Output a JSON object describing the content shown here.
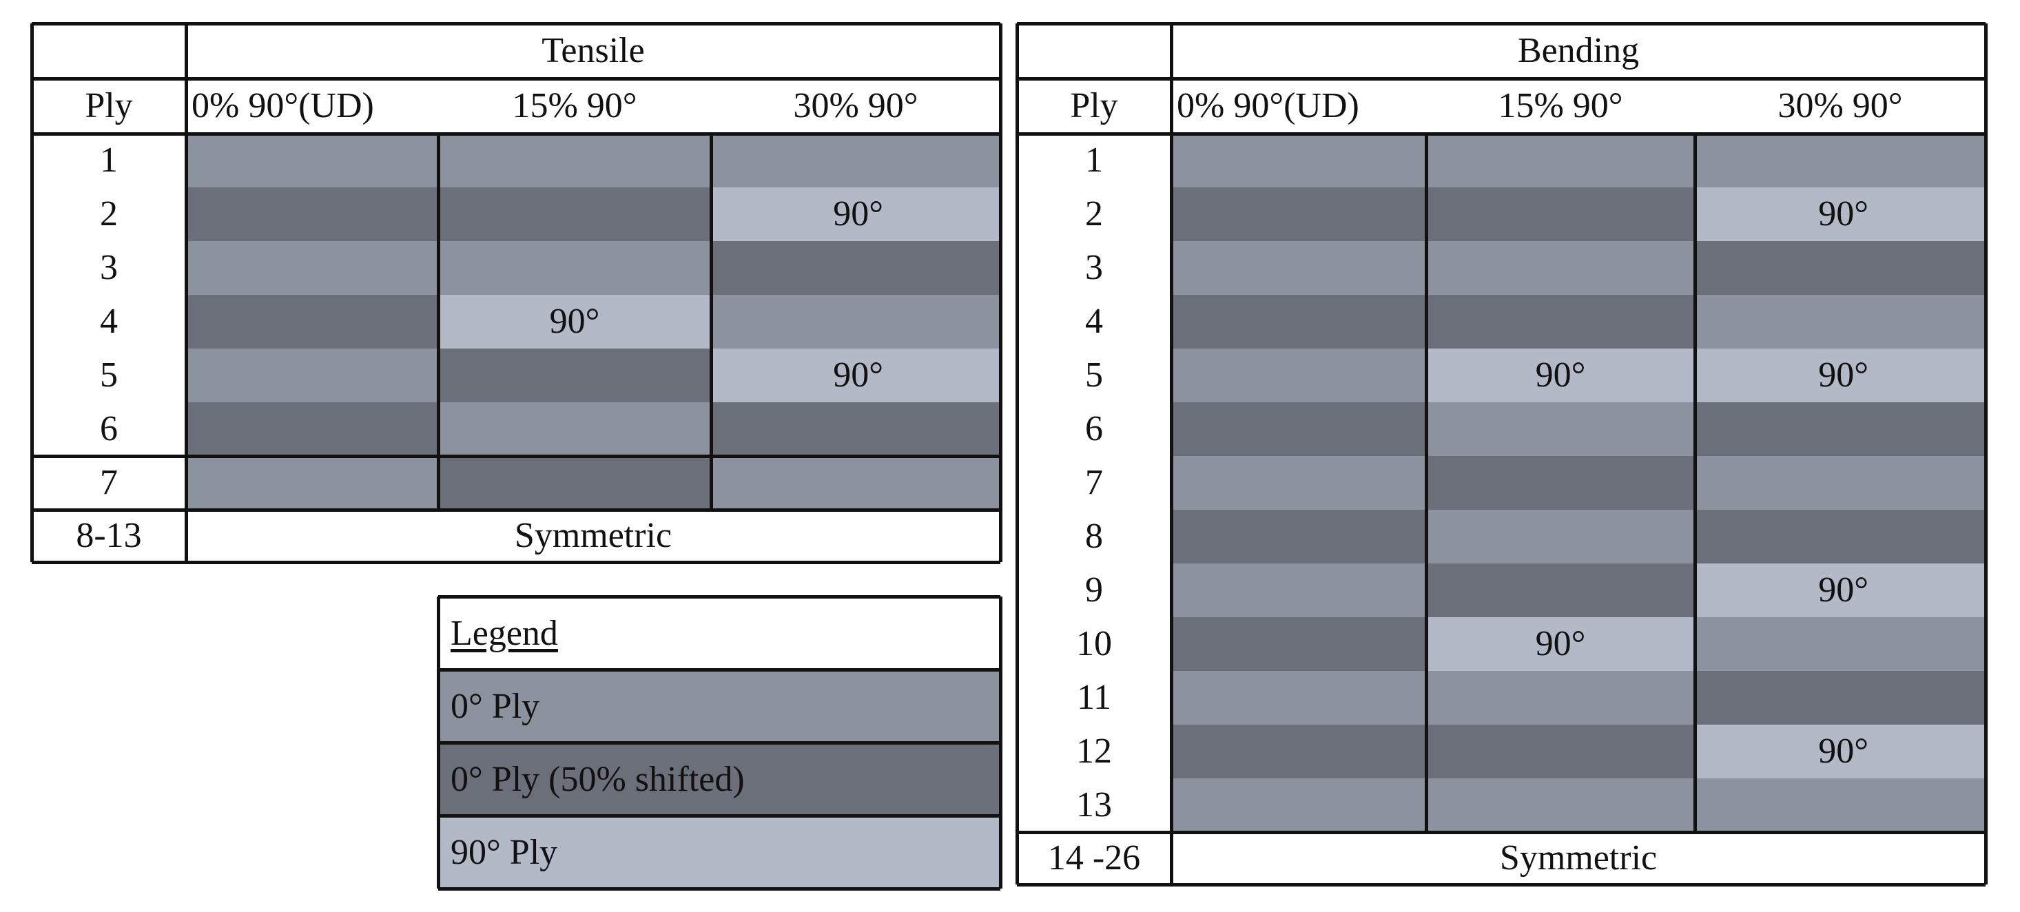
{
  "colors": {
    "ply_0": "#8c929e",
    "ply_0_shifted": "#6b6f79",
    "ply_90": "#b4b9c8",
    "border": "#111111",
    "background": "#ffffff"
  },
  "tensile": {
    "title": "Tensile",
    "ply_header": "Ply",
    "columns": [
      "0% 90°(UD)",
      "15% 90°",
      "30% 90°"
    ],
    "ply_numbers": [
      "1",
      "2",
      "3",
      "4",
      "5",
      "6",
      "7"
    ],
    "rows": [
      [
        "0",
        "0",
        "0"
      ],
      [
        "s",
        "s",
        "90"
      ],
      [
        "0",
        "0",
        "s"
      ],
      [
        "s",
        "90",
        "0"
      ],
      [
        "0",
        "s",
        "90"
      ],
      [
        "s",
        "0",
        "s"
      ],
      [
        "0",
        "s",
        "0"
      ]
    ],
    "symmetric_range": "8-13",
    "symmetric_label": "Symmetric"
  },
  "bending": {
    "title": "Bending",
    "ply_header": "Ply",
    "columns": [
      "0% 90°(UD)",
      "15% 90°",
      "30% 90°"
    ],
    "ply_numbers": [
      "1",
      "2",
      "3",
      "4",
      "5",
      "6",
      "7",
      "8",
      "9",
      "10",
      "11",
      "12",
      "13"
    ],
    "rows": [
      [
        "0",
        "0",
        "0"
      ],
      [
        "s",
        "s",
        "90"
      ],
      [
        "0",
        "0",
        "s"
      ],
      [
        "s",
        "s",
        "0"
      ],
      [
        "0",
        "90",
        "90"
      ],
      [
        "s",
        "0",
        "s"
      ],
      [
        "0",
        "s",
        "0"
      ],
      [
        "s",
        "0",
        "s"
      ],
      [
        "0",
        "s",
        "90"
      ],
      [
        "s",
        "90",
        "0"
      ],
      [
        "0",
        "0",
        "s"
      ],
      [
        "s",
        "s",
        "90"
      ],
      [
        "0",
        "0",
        "0"
      ]
    ],
    "symmetric_range": "14 -26",
    "symmetric_label": "Symmetric"
  },
  "cell_90_label": "90°",
  "legend": {
    "title": "Legend",
    "items": [
      {
        "label": "0° Ply",
        "kind": "0"
      },
      {
        "label": "0° Ply (50% shifted)",
        "kind": "s"
      },
      {
        "label": "90° Ply",
        "kind": "90"
      }
    ]
  }
}
